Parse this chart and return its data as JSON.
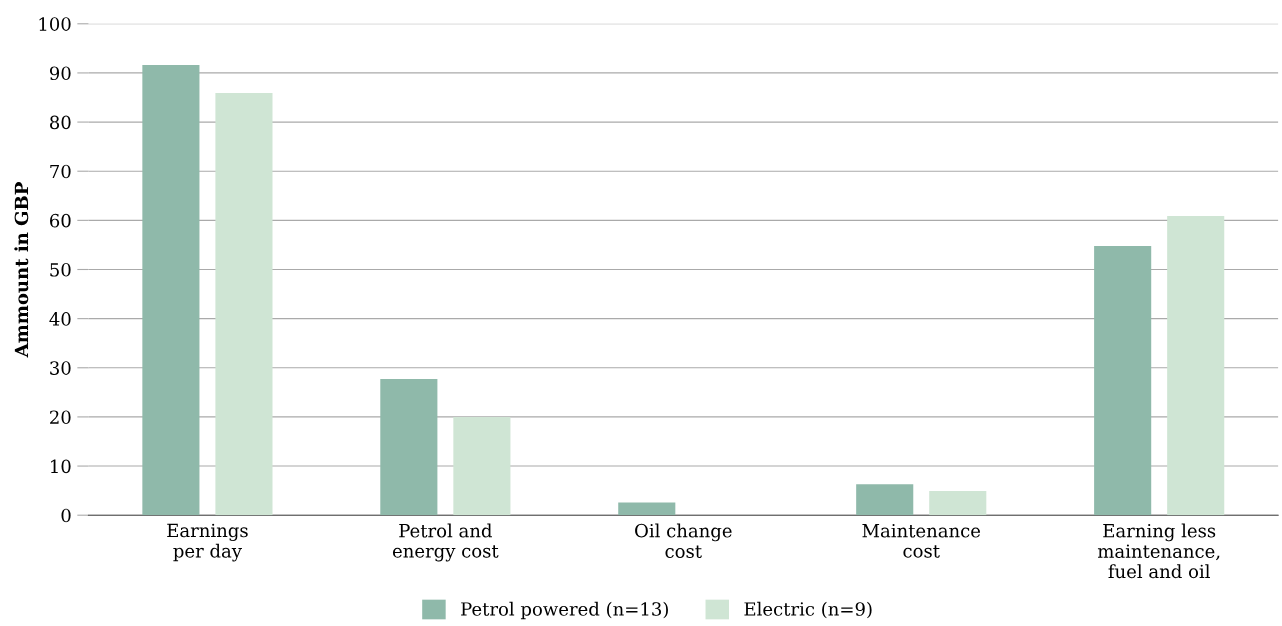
{
  "chart_data": {
    "type": "bar",
    "ylabel": "Ammount in GBP",
    "categories": [
      "Earnings\nper day",
      "Petrol and\nenergy cost",
      "Oil change\ncost",
      "Maintenance\ncost",
      "Earning less\nmaintenance,\nfuel and oil"
    ],
    "series": [
      {
        "name": "Petrol powered (n=13)",
        "color": "#8fb9aa",
        "values": [
          91.6,
          27.7,
          2.6,
          6.3,
          54.8
        ]
      },
      {
        "name": "Electric (n=9)",
        "color": "#cfe5d4",
        "values": [
          85.9,
          20.0,
          null,
          4.9,
          60.9
        ]
      }
    ],
    "ylim": [
      0,
      100
    ],
    "yticks": [
      0,
      10,
      20,
      30,
      40,
      50,
      60,
      70,
      80,
      90,
      100
    ],
    "grid": "y",
    "legend": "bottom"
  }
}
